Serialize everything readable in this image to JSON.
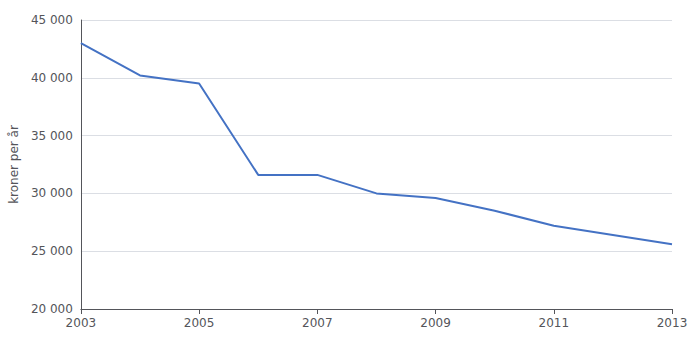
{
  "chart_data": {
    "type": "line",
    "x": [
      2003,
      2004,
      2005,
      2006,
      2007,
      2008,
      2009,
      2010,
      2011,
      2012,
      2013
    ],
    "values": [
      43000,
      40200,
      39500,
      31600,
      31600,
      30000,
      29600,
      28500,
      27200,
      26400,
      25600
    ],
    "color": "#4472c4",
    "ylabel": "kroner per år",
    "xlim": [
      2003,
      2013
    ],
    "xticks": [
      2003,
      2005,
      2007,
      2009,
      2011,
      2013
    ],
    "ylim": [
      20000,
      45000
    ],
    "yticks": [
      {
        "value": 20000,
        "label": "20 000"
      },
      {
        "value": 25000,
        "label": "25 000"
      },
      {
        "value": 30000,
        "label": "30 000"
      },
      {
        "value": 35000,
        "label": "35 000"
      },
      {
        "value": 40000,
        "label": "40 000"
      },
      {
        "value": 45000,
        "label": "45 000"
      }
    ],
    "grid": true
  }
}
